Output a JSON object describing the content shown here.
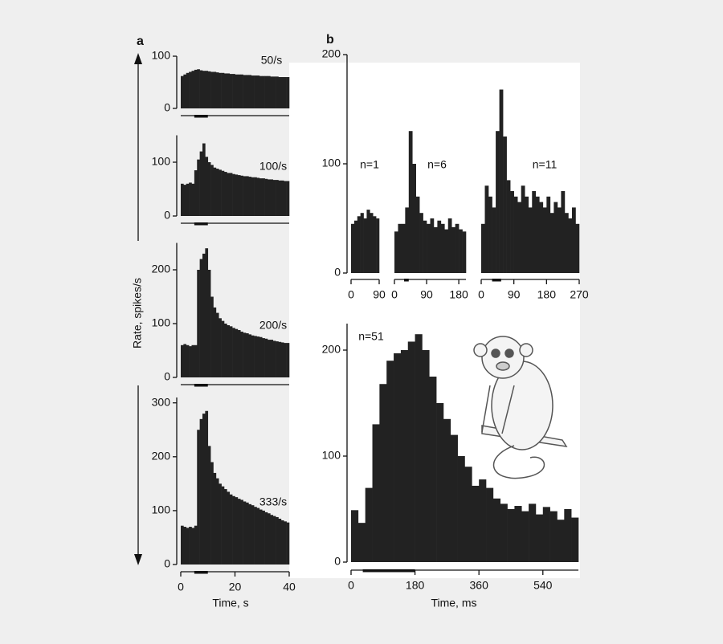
{
  "chart_data": [
    {
      "type": "histogram",
      "panel_label": "a",
      "label": "50/s",
      "ylabel": "Rate, spikes/s",
      "color": "#222222",
      "bins": [
        0,
        1,
        2,
        3,
        4,
        5,
        6,
        7,
        8,
        9,
        10,
        11,
        12,
        13,
        14,
        15,
        16,
        17,
        18,
        19,
        20,
        21,
        22,
        23,
        24,
        25,
        26,
        27,
        28,
        29,
        30,
        31,
        32,
        33,
        34,
        35,
        36,
        37,
        38,
        39,
        40
      ],
      "values": [
        62,
        65,
        68,
        70,
        72,
        74,
        75,
        73,
        72,
        72,
        71,
        70,
        70,
        69,
        68,
        68,
        67,
        67,
        66,
        66,
        65,
        65,
        65,
        64,
        64,
        64,
        63,
        63,
        63,
        62,
        62,
        62,
        62,
        61,
        61,
        61,
        60,
        60,
        60,
        60
      ],
      "xlim": [
        0,
        40
      ],
      "ylim": [
        0,
        100
      ],
      "yticks": [
        0,
        100
      ],
      "stimulus": [
        5,
        10
      ]
    },
    {
      "type": "histogram",
      "label": "100/s",
      "color": "#222222",
      "bins": [
        0,
        1,
        2,
        3,
        4,
        5,
        6,
        7,
        8,
        9,
        10,
        11,
        12,
        13,
        14,
        15,
        16,
        17,
        18,
        19,
        20,
        21,
        22,
        23,
        24,
        25,
        26,
        27,
        28,
        29,
        30,
        31,
        32,
        33,
        34,
        35,
        36,
        37,
        38,
        39,
        40
      ],
      "values": [
        60,
        58,
        60,
        62,
        60,
        85,
        105,
        120,
        135,
        110,
        100,
        95,
        90,
        88,
        86,
        84,
        82,
        80,
        80,
        78,
        77,
        76,
        75,
        74,
        74,
        73,
        72,
        72,
        71,
        70,
        70,
        69,
        68,
        68,
        67,
        67,
        66,
        66,
        65,
        65
      ],
      "xlim": [
        0,
        40
      ],
      "ylim": [
        0,
        150
      ],
      "yticks": [
        0,
        100
      ],
      "stimulus": [
        5,
        10
      ]
    },
    {
      "type": "histogram",
      "label": "200/s",
      "color": "#222222",
      "bins": [
        0,
        1,
        2,
        3,
        4,
        5,
        6,
        7,
        8,
        9,
        10,
        11,
        12,
        13,
        14,
        15,
        16,
        17,
        18,
        19,
        20,
        21,
        22,
        23,
        24,
        25,
        26,
        27,
        28,
        29,
        30,
        31,
        32,
        33,
        34,
        35,
        36,
        37,
        38,
        39,
        40
      ],
      "values": [
        60,
        62,
        60,
        58,
        60,
        60,
        200,
        220,
        230,
        240,
        200,
        150,
        130,
        120,
        110,
        105,
        100,
        97,
        95,
        92,
        90,
        88,
        85,
        83,
        82,
        80,
        78,
        77,
        76,
        75,
        73,
        72,
        70,
        70,
        68,
        67,
        66,
        65,
        64,
        64
      ],
      "xlim": [
        0,
        40
      ],
      "ylim": [
        0,
        250
      ],
      "yticks": [
        0,
        100,
        200
      ],
      "stimulus": [
        5,
        10
      ]
    },
    {
      "type": "histogram",
      "label": "333/s",
      "xlabel": "Time, s",
      "color": "#222222",
      "bins": [
        0,
        1,
        2,
        3,
        4,
        5,
        6,
        7,
        8,
        9,
        10,
        11,
        12,
        13,
        14,
        15,
        16,
        17,
        18,
        19,
        20,
        21,
        22,
        23,
        24,
        25,
        26,
        27,
        28,
        29,
        30,
        31,
        32,
        33,
        34,
        35,
        36,
        37,
        38,
        39,
        40
      ],
      "values": [
        72,
        70,
        68,
        70,
        68,
        72,
        250,
        270,
        280,
        285,
        220,
        190,
        170,
        160,
        150,
        145,
        140,
        135,
        130,
        127,
        125,
        122,
        120,
        117,
        115,
        112,
        110,
        107,
        105,
        102,
        100,
        97,
        95,
        92,
        90,
        88,
        85,
        82,
        80,
        78
      ],
      "xlim": [
        0,
        40
      ],
      "ylim": [
        0,
        310
      ],
      "yticks": [
        0,
        100,
        200,
        300
      ],
      "xticks": [
        0,
        20,
        40
      ],
      "stimulus": [
        5,
        10
      ]
    },
    {
      "type": "histogram",
      "panel_label": "b",
      "label": "n=1",
      "color": "#222222",
      "bins": [
        0,
        10,
        20,
        30,
        40,
        50,
        60,
        70,
        80,
        90
      ],
      "values": [
        45,
        48,
        52,
        55,
        50,
        58,
        55,
        52,
        50
      ],
      "xlim": [
        0,
        90
      ],
      "ylim": [
        0,
        200
      ],
      "yticks": [
        0,
        100,
        200
      ],
      "xticks": [
        0,
        90
      ]
    },
    {
      "type": "histogram",
      "label": "n=6",
      "color": "#222222",
      "bins": [
        0,
        10,
        20,
        30,
        40,
        50,
        60,
        70,
        80,
        90,
        100,
        110,
        120,
        130,
        140,
        150,
        160,
        170,
        180,
        190,
        200
      ],
      "values": [
        38,
        45,
        45,
        60,
        130,
        100,
        70,
        55,
        48,
        45,
        50,
        42,
        48,
        45,
        40,
        50,
        42,
        45,
        40,
        38
      ],
      "xlim": [
        0,
        200
      ],
      "ylim": [
        0,
        200
      ],
      "xticks": [
        0,
        90,
        180
      ],
      "stimulus": [
        27,
        40
      ]
    },
    {
      "type": "histogram",
      "label": "n=11",
      "color": "#222222",
      "bins": [
        0,
        10,
        20,
        30,
        40,
        50,
        60,
        70,
        80,
        90,
        100,
        110,
        120,
        130,
        140,
        150,
        160,
        170,
        180,
        190,
        200,
        210,
        220,
        230,
        240,
        250,
        260,
        270
      ],
      "values": [
        45,
        80,
        70,
        60,
        130,
        168,
        125,
        85,
        75,
        70,
        65,
        80,
        70,
        60,
        75,
        70,
        65,
        60,
        70,
        55,
        65,
        60,
        75,
        55,
        50,
        60,
        45
      ],
      "xlim": [
        0,
        270
      ],
      "ylim": [
        0,
        200
      ],
      "xticks": [
        0,
        90,
        180,
        270
      ],
      "stimulus": [
        30,
        55
      ]
    },
    {
      "type": "histogram",
      "label": "n=51",
      "xlabel": "Time, ms",
      "color": "#222222",
      "bins": [
        0,
        20,
        40,
        60,
        80,
        100,
        120,
        140,
        160,
        180,
        200,
        220,
        240,
        260,
        280,
        300,
        320,
        340,
        360,
        380,
        400,
        420,
        440,
        460,
        480,
        500,
        520,
        540,
        560,
        580,
        600,
        620,
        640
      ],
      "values": [
        49,
        37,
        70,
        130,
        168,
        190,
        197,
        200,
        208,
        215,
        200,
        175,
        150,
        135,
        120,
        100,
        90,
        72,
        78,
        70,
        60,
        55,
        50,
        53,
        48,
        55,
        45,
        52,
        48,
        40,
        50,
        42
      ],
      "xlim": [
        0,
        640
      ],
      "ylim": [
        0,
        225
      ],
      "yticks": [
        0,
        100,
        200
      ],
      "xticks": [
        0,
        180,
        360,
        540
      ],
      "stimulus": [
        33,
        180
      ]
    }
  ]
}
